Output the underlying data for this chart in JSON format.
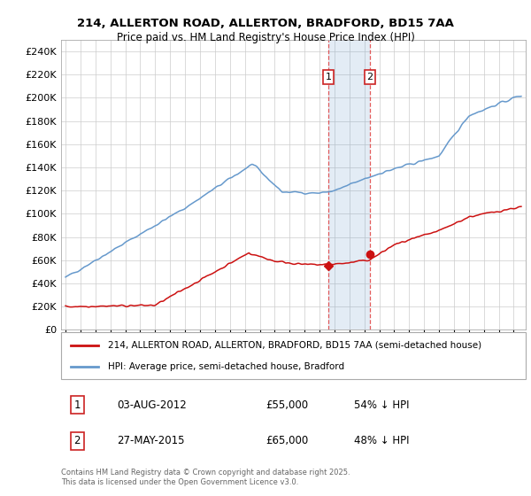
{
  "title1": "214, ALLERTON ROAD, ALLERTON, BRADFORD, BD15 7AA",
  "title2": "Price paid vs. HM Land Registry's House Price Index (HPI)",
  "ylabel_ticks": [
    "£0",
    "£20K",
    "£40K",
    "£60K",
    "£80K",
    "£100K",
    "£120K",
    "£140K",
    "£160K",
    "£180K",
    "£200K",
    "£220K",
    "£240K"
  ],
  "ytick_vals": [
    0,
    20000,
    40000,
    60000,
    80000,
    100000,
    120000,
    140000,
    160000,
    180000,
    200000,
    220000,
    240000
  ],
  "ylim": [
    0,
    250000
  ],
  "xlim_start": 1994.7,
  "xlim_end": 2025.8,
  "hpi_color": "#6699cc",
  "price_color": "#cc1111",
  "bg_color": "#ffffff",
  "grid_color": "#cccccc",
  "sale1_x": 2012.58,
  "sale1_y": 55000,
  "sale1_label": "1",
  "sale2_x": 2015.38,
  "sale2_y": 65000,
  "sale2_label": "2",
  "shade_x1": 2012.58,
  "shade_x2": 2015.38,
  "legend_line1": "214, ALLERTON ROAD, ALLERTON, BRADFORD, BD15 7AA (semi-detached house)",
  "legend_line2": "HPI: Average price, semi-detached house, Bradford",
  "note1_label": "1",
  "note1_date": "03-AUG-2012",
  "note1_price": "£55,000",
  "note1_hpi": "54% ↓ HPI",
  "note2_label": "2",
  "note2_date": "27-MAY-2015",
  "note2_price": "£65,000",
  "note2_hpi": "48% ↓ HPI",
  "footer": "Contains HM Land Registry data © Crown copyright and database right 2025.\nThis data is licensed under the Open Government Licence v3.0."
}
